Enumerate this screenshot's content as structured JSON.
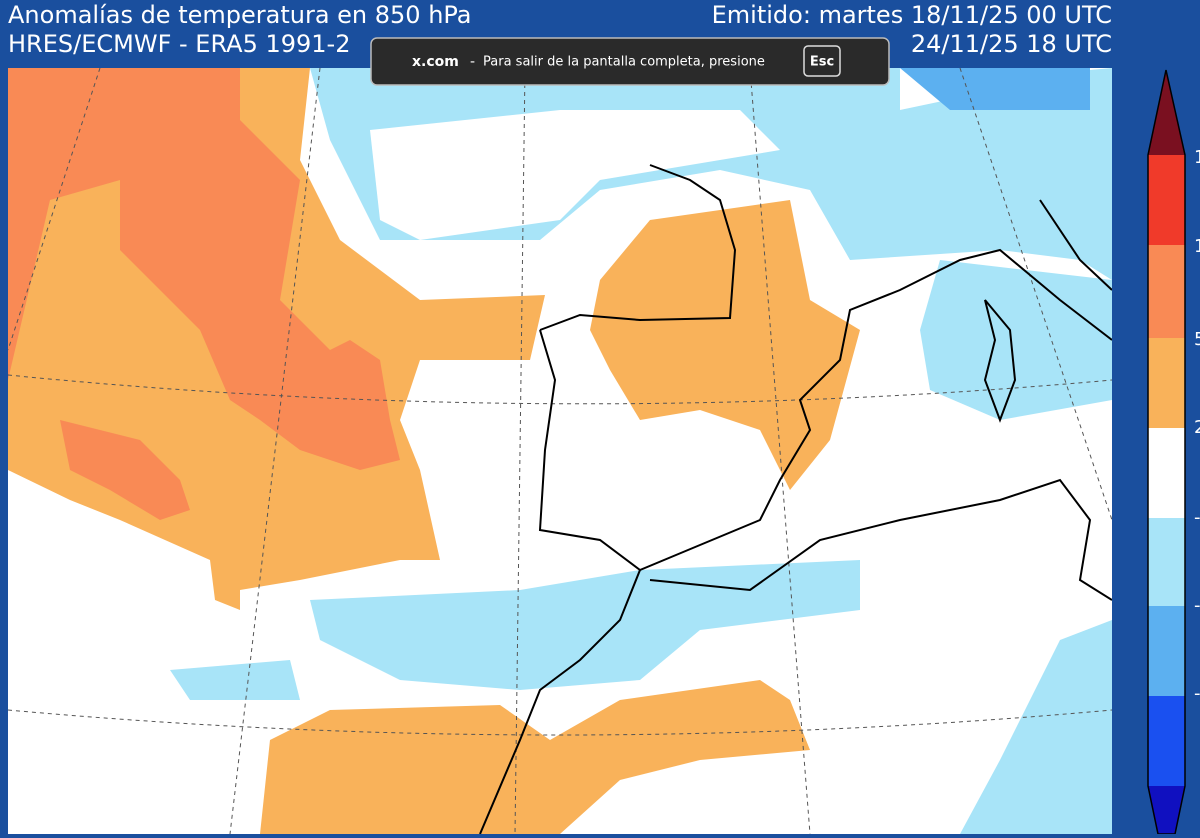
{
  "header": {
    "title": "Anomalías de temperatura en 850 hPa",
    "subtitle": "HRES/ECMWF - ERA5 1991-2",
    "issued": "Emitido: martes 18/11/25 00 UTC",
    "valid": "24/11/25 18 UTC"
  },
  "overlay": {
    "site": "x.com",
    "separator": "-",
    "message": "Para salir de la pantalla completa, presione",
    "key": "Esc"
  },
  "colorbar": {
    "labels": [
      "1",
      "1",
      "5",
      "2",
      "-",
      "-",
      "-"
    ]
  }
}
